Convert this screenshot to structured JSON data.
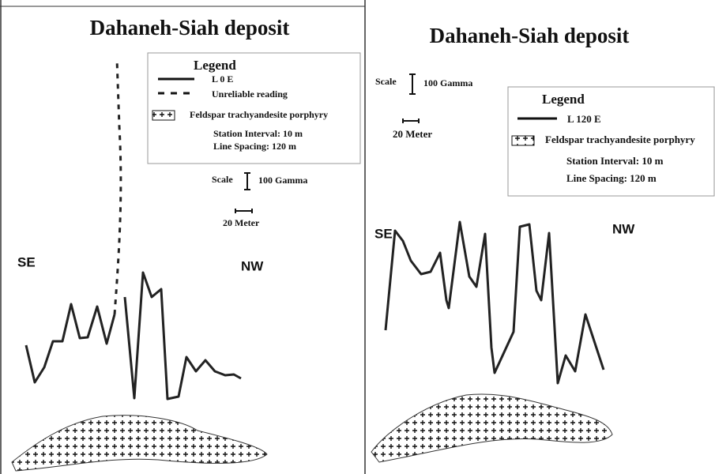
{
  "panels": [
    {
      "title": "Dahaneh-Siah deposit",
      "legend": {
        "title": "Legend",
        "items": [
          "L 0 E",
          "Unreliable reading",
          "Feldspar trachyandesite porphyry"
        ],
        "notes": [
          "Station Interval: 10 m",
          "Line Spacing: 120 m"
        ]
      },
      "scale": {
        "label": "Scale",
        "gamma": "100 Gamma",
        "meter": "20 Meter"
      },
      "labels": {
        "left": "SE",
        "right": "NW"
      }
    },
    {
      "title": "Dahaneh-Siah deposit",
      "legend": {
        "title": "Legend",
        "items": [
          "L 120 E",
          "Feldspar trachyandesite porphyry"
        ],
        "notes": [
          "Station Interval: 10 m",
          "Line Spacing: 120 m"
        ]
      },
      "scale": {
        "label": "Scale",
        "gamma": "100 Gamma",
        "meter": "20 Meter"
      },
      "labels": {
        "left": "SE",
        "right": "NW"
      }
    }
  ]
}
